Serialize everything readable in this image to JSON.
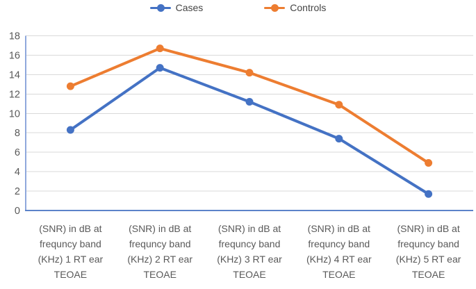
{
  "chart_data": {
    "type": "line",
    "title": "",
    "xlabel": "",
    "ylabel": "",
    "grid": true,
    "legend_position": "top",
    "categories": [
      {
        "lines": [
          "(SNR) in dB at",
          "frequncy band",
          "(KHz) 1 RT ear",
          "TEOAE"
        ]
      },
      {
        "lines": [
          "(SNR) in dB at",
          "frequncy band",
          "(KHz) 2 RT ear",
          "TEOAE"
        ]
      },
      {
        "lines": [
          "(SNR) in dB at",
          "frequncy band",
          "(KHz) 3 RT ear",
          "TEOAE"
        ]
      },
      {
        "lines": [
          "(SNR) in dB at",
          "frequncy band",
          "(KHz) 4 RT ear",
          "TEOAE"
        ]
      },
      {
        "lines": [
          "(SNR) in dB at",
          "frequncy band",
          "(KHz) 5 RT ear",
          "TEOAE"
        ]
      }
    ],
    "series": [
      {
        "name": "Cases",
        "color": "#4472C4",
        "values": [
          8.3,
          14.7,
          11.2,
          7.4,
          1.7
        ]
      },
      {
        "name": "Controls",
        "color": "#ED7D31",
        "values": [
          12.8,
          16.7,
          14.2,
          10.9,
          4.9
        ]
      }
    ],
    "y_axis": {
      "min": 0,
      "max": 18,
      "step": 2,
      "tick_labels": [
        "0",
        "2",
        "4",
        "6",
        "8",
        "10",
        "12",
        "14",
        "16",
        "18"
      ]
    },
    "colors": {
      "gridline": "#D9D9D9",
      "axis_line": "#5B83C9",
      "tick_text": "#595959",
      "category_text": "#595959",
      "legend_text": "#444444",
      "background": "#FFFFFF"
    }
  }
}
